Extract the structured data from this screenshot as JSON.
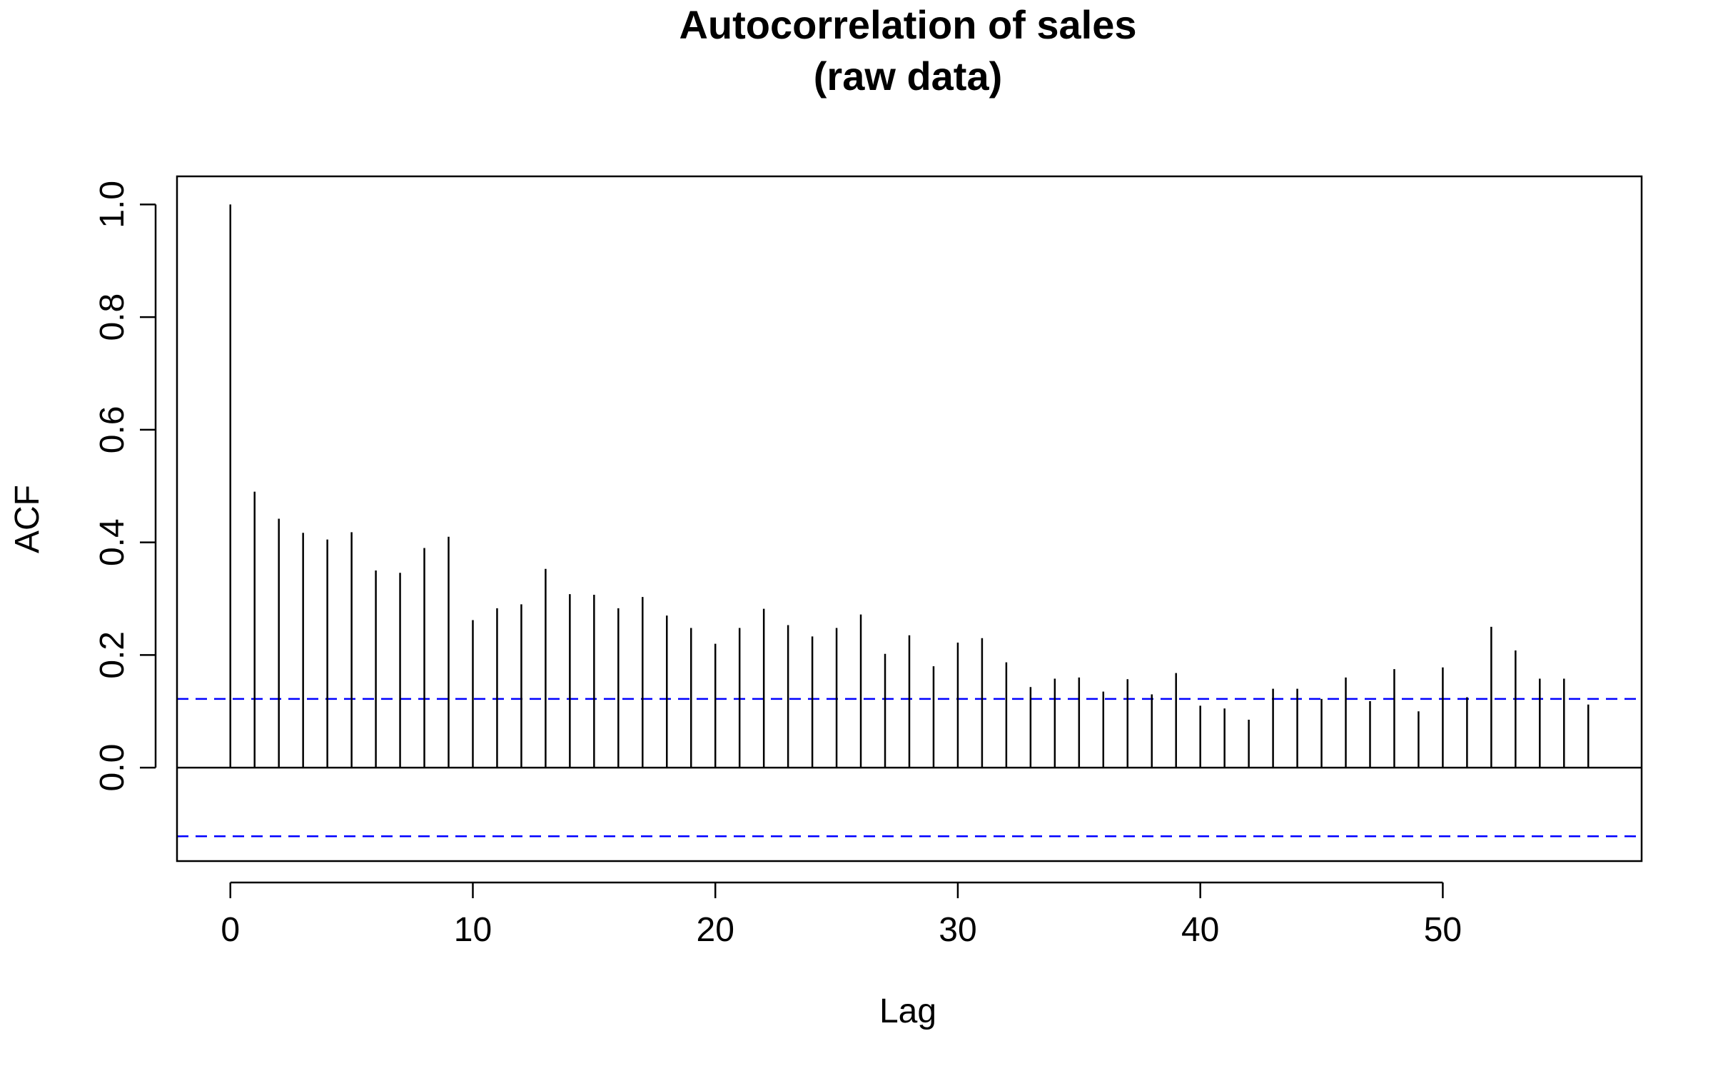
{
  "chart_data": {
    "type": "bar",
    "title_lines": [
      "Autocorrelation of sales",
      "(raw data)"
    ],
    "xlabel": "Lag",
    "ylabel": "ACF",
    "xlim": [
      -2.2,
      58.2
    ],
    "ylim": [
      -0.166,
      1.05
    ],
    "x_ticks": [
      0,
      10,
      20,
      30,
      40,
      50
    ],
    "x_tick_labels": [
      "0",
      "10",
      "20",
      "30",
      "40",
      "50"
    ],
    "y_ticks": [
      0.0,
      0.2,
      0.4,
      0.6,
      0.8,
      1.0
    ],
    "y_tick_labels": [
      "0.0",
      "0.2",
      "0.4",
      "0.6",
      "0.8",
      "1.0"
    ],
    "confidence_bound": 0.122,
    "grid": false,
    "lags": [
      0,
      1,
      2,
      3,
      4,
      5,
      6,
      7,
      8,
      9,
      10,
      11,
      12,
      13,
      14,
      15,
      16,
      17,
      18,
      19,
      20,
      21,
      22,
      23,
      24,
      25,
      26,
      27,
      28,
      29,
      30,
      31,
      32,
      33,
      34,
      35,
      36,
      37,
      38,
      39,
      40,
      41,
      42,
      43,
      44,
      45,
      46,
      47,
      48,
      49,
      50,
      51,
      52,
      53,
      54,
      55,
      56
    ],
    "values": [
      1.0,
      0.49,
      0.442,
      0.417,
      0.405,
      0.418,
      0.35,
      0.346,
      0.39,
      0.41,
      0.262,
      0.283,
      0.29,
      0.353,
      0.308,
      0.307,
      0.283,
      0.303,
      0.27,
      0.248,
      0.22,
      0.248,
      0.282,
      0.253,
      0.233,
      0.248,
      0.272,
      0.202,
      0.235,
      0.18,
      0.222,
      0.23,
      0.187,
      0.143,
      0.158,
      0.16,
      0.135,
      0.157,
      0.13,
      0.168,
      0.11,
      0.105,
      0.085,
      0.14,
      0.14,
      0.122,
      0.16,
      0.118,
      0.175,
      0.1,
      0.178,
      0.125,
      0.25,
      0.208,
      0.158,
      0.158,
      0.112
    ],
    "colors": {
      "lines": "#000000",
      "confidence": "#0000ff",
      "background": "#ffffff"
    }
  }
}
